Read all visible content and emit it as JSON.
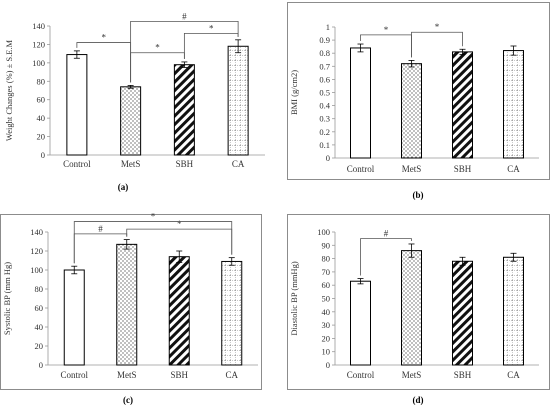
{
  "chart_data": [
    {
      "type": "bar",
      "id": "a",
      "caption": "(a)",
      "categories": [
        "Control",
        "MetS",
        "SBH",
        "CA"
      ],
      "values": [
        109,
        74,
        98,
        118
      ],
      "errors": [
        4,
        1.5,
        3,
        7
      ],
      "ylabel": "Weight Changes (%) ± S.E.M",
      "ylim": [
        0,
        140
      ],
      "ytick_labels": [
        "0",
        "20",
        "40",
        "60",
        "80",
        "100",
        "120",
        "140"
      ],
      "bar_styles": [
        "white",
        "dots",
        "diagonal",
        "grid"
      ],
      "significance": [
        {
          "from": 0,
          "to": 1,
          "label": "*",
          "level": 122
        },
        {
          "from": 1,
          "to": 2,
          "label": "*",
          "level": 111
        },
        {
          "from": 2,
          "to": 3,
          "label": "*",
          "level": 132
        },
        {
          "from": 1,
          "to": 3,
          "label": "#",
          "level": 145
        }
      ],
      "frame": false
    },
    {
      "type": "bar",
      "id": "b",
      "caption": "(b)",
      "categories": [
        "Control",
        "MetS",
        "SBH",
        "CA"
      ],
      "values": [
        0.84,
        0.72,
        0.81,
        0.82
      ],
      "errors": [
        0.03,
        0.025,
        0.02,
        0.035
      ],
      "ylabel": "BMI (g/cm2)",
      "ylim": [
        0,
        1
      ],
      "ytick_labels": [
        "0",
        "0.1",
        "0.2",
        "0.3",
        "0.4",
        "0.5",
        "0.6",
        "0.7",
        "0.8",
        "0.9",
        "1"
      ],
      "bar_styles": [
        "white",
        "dots",
        "diagonal",
        "grid"
      ],
      "significance": [
        {
          "from": 0,
          "to": 1,
          "label": "*",
          "level": 0.94
        },
        {
          "from": 1,
          "to": 2,
          "label": "*",
          "level": 0.96
        }
      ],
      "frame": true
    },
    {
      "type": "bar",
      "id": "c",
      "caption": "(c)",
      "categories": [
        "Control",
        "MetS",
        "SBH",
        "CA"
      ],
      "values": [
        100,
        127,
        114,
        109
      ],
      "errors": [
        4,
        5,
        6,
        4
      ],
      "ylabel": "Systolic BP (mm Hg)",
      "ylim": [
        0,
        140
      ],
      "ytick_labels": [
        "0",
        "20",
        "40",
        "60",
        "80",
        "100",
        "120",
        "140"
      ],
      "bar_styles": [
        "white",
        "dots",
        "diagonal",
        "grid"
      ],
      "significance": [
        {
          "from": 0,
          "to": 1,
          "label": "#",
          "level": 138
        },
        {
          "from": 1,
          "to": 3,
          "label": "*",
          "level": 143
        },
        {
          "from": 0,
          "to": 3,
          "label": "*",
          "level": 151
        }
      ],
      "frame": true
    },
    {
      "type": "bar",
      "id": "d",
      "caption": "(d)",
      "categories": [
        "Control",
        "MetS",
        "SBH",
        "CA"
      ],
      "values": [
        63,
        86,
        78,
        81
      ],
      "errors": [
        2,
        5,
        3,
        3
      ],
      "ylabel": "Diastolic BP (mmHg)",
      "ylim": [
        0,
        100
      ],
      "ytick_labels": [
        "0",
        "10",
        "20",
        "30",
        "40",
        "50",
        "60",
        "70",
        "80",
        "90",
        "100"
      ],
      "bar_styles": [
        "white",
        "dots",
        "diagonal",
        "grid"
      ],
      "significance": [
        {
          "from": 0,
          "to": 1,
          "label": "#",
          "level": 95
        }
      ],
      "frame": true
    }
  ]
}
